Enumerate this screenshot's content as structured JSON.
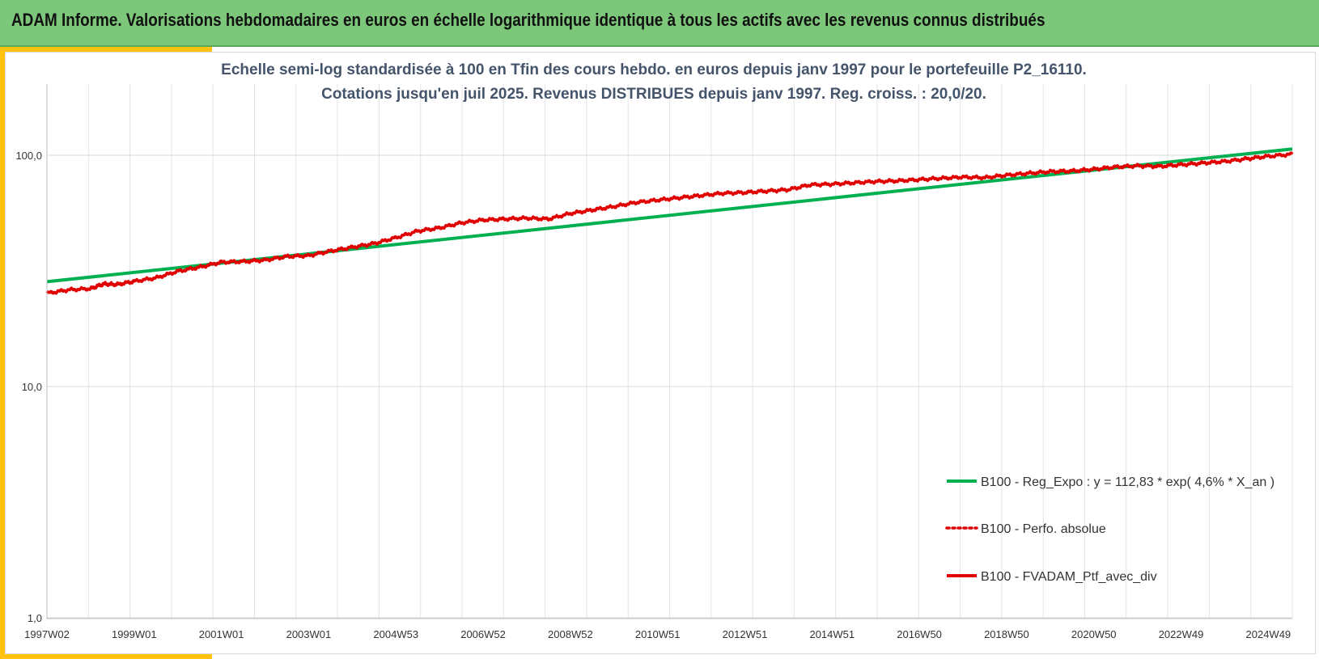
{
  "header": {
    "title": "ADAM Informe. Valorisations hebdomadaires en euros en échelle logarithmique identique à tous les actifs avec les revenus connus distribués",
    "banner_color": "#7dc77a",
    "accent_color": "#ffc20e"
  },
  "chart_data": {
    "type": "line",
    "title": "Echelle semi-log standardisée  à 100 en Tfin des cours hebdo.  en euros depuis janv 1997 pour le portefeuille P2_16110.",
    "subtitle": "Cotations jusqu'en juil 2025. Revenus DISTRIBUES depuis janv 1997. Reg. croiss. : 20,0/20.",
    "y_scale": "log",
    "ylim": [
      1,
      200
    ],
    "y_ticks": [
      "100,0",
      "10,0",
      "1,0"
    ],
    "y_tick_values": [
      100,
      10,
      1
    ],
    "x_ticks": [
      "1997W02",
      "1999W01",
      "2001W01",
      "2003W01",
      "2004W53",
      "2006W52",
      "2008W52",
      "2010W51",
      "2012W51",
      "2014W51",
      "2016W50",
      "2018W50",
      "2020W50",
      "2022W49",
      "2024W49"
    ],
    "x_tick_years": [
      1997.0,
      1999.0,
      2001.0,
      2003.0,
      2005.0,
      2007.0,
      2009.0,
      2011.0,
      2013.0,
      2015.0,
      2017.0,
      2019.0,
      2021.0,
      2023.0,
      2025.0
    ],
    "xlim": [
      1997.0,
      2025.55
    ],
    "grid": "vertical",
    "legend_position": "bottom-right",
    "series": [
      {
        "name": "B100 - Reg_Expo : y = 112,83 * exp( 4,6% *  X_an )",
        "color": "#00b050",
        "style": "solid",
        "x": [
          1997.0,
          2025.55
        ],
        "values": [
          28.4,
          106.5
        ]
      },
      {
        "name": "B100 - Perfo. absolue",
        "color": "#e00000",
        "style": "dotted",
        "x": [],
        "values": []
      },
      {
        "name": "B100 - FVADAM_Ptf_avec_div",
        "color": "#e00000",
        "style": "solid",
        "x": [
          1997.0,
          1997.5,
          1998.0,
          1998.3,
          1998.6,
          1999.0,
          1999.5,
          2000.0,
          2000.5,
          2001.0,
          2001.5,
          2002.0,
          2002.5,
          2003.0,
          2003.5,
          2004.0,
          2004.5,
          2005.0,
          2005.5,
          2006.0,
          2006.5,
          2007.0,
          2007.5,
          2008.0,
          2008.5,
          2009.0,
          2009.5,
          2010.0,
          2010.5,
          2011.0,
          2011.5,
          2012.0,
          2012.5,
          2013.0,
          2013.5,
          2014.0,
          2014.5,
          2015.0,
          2015.5,
          2016.0,
          2016.5,
          2017.0,
          2017.5,
          2018.0,
          2018.5,
          2019.0,
          2019.5,
          2020.0,
          2020.5,
          2021.0,
          2021.5,
          2022.0,
          2022.5,
          2023.0,
          2023.5,
          2024.0,
          2024.5,
          2025.0,
          2025.55
        ],
        "values": [
          25.3,
          26.2,
          26.5,
          27.8,
          27.6,
          28.5,
          29.5,
          31.5,
          32.8,
          34.5,
          34.7,
          35.2,
          36.5,
          36.8,
          38.5,
          40.0,
          41.5,
          44.0,
          47.0,
          48.5,
          51.0,
          52.5,
          53.0,
          53.5,
          53.0,
          56.0,
          58.0,
          60.0,
          62.5,
          64.0,
          65.5,
          67.0,
          68.5,
          69.0,
          70.0,
          71.0,
          74.5,
          75.0,
          76.0,
          77.0,
          77.5,
          78.5,
          79.5,
          80.5,
          80.0,
          82.0,
          83.5,
          85.0,
          85.5,
          87.0,
          89.0,
          90.0,
          89.5,
          91.0,
          92.5,
          94.0,
          96.5,
          99.0,
          101.0
        ]
      }
    ]
  }
}
